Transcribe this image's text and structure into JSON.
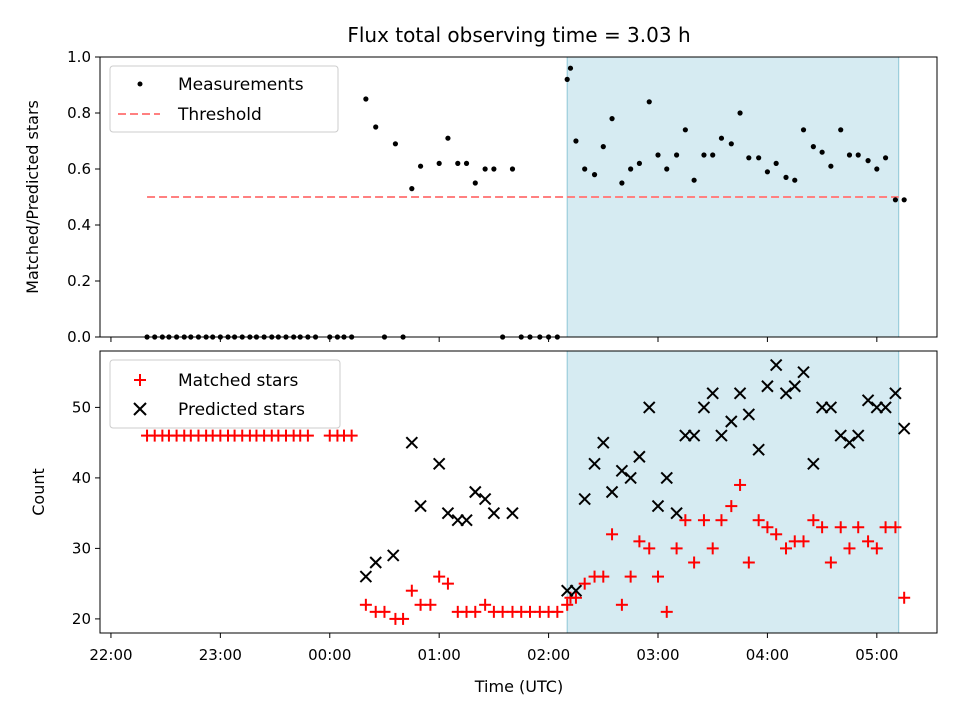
{
  "chart_data": {
    "title": "Flux total observing time = 3.03 h",
    "xlabel": "Time (UTC)",
    "x_tick_labels": [
      "22:00",
      "23:00",
      "00:00",
      "01:00",
      "02:00",
      "03:00",
      "04:00",
      "05:00"
    ],
    "x_tick_hours": [
      0,
      1,
      2,
      3,
      4,
      5,
      6,
      7
    ],
    "highlight_span_hours": [
      4.17,
      7.2
    ],
    "panels": [
      {
        "type": "scatter",
        "ylabel": "Matched/Predicted stars",
        "ylim": [
          0,
          1.0
        ],
        "y_ticks": [
          0.0,
          0.2,
          0.4,
          0.6,
          0.8,
          1.0
        ],
        "y_tick_labels": [
          "0.0",
          "0.2",
          "0.4",
          "0.6",
          "0.8",
          "1.0"
        ],
        "legend": {
          "position": "upper-left"
        },
        "threshold": {
          "name": "Threshold",
          "value": 0.5,
          "x_range": [
            0.33,
            7.2
          ],
          "color": "#ff8080"
        },
        "series": [
          {
            "name": "Measurements",
            "marker": "dot",
            "color": "#000000",
            "x": [
              0.33,
              0.4,
              0.47,
              0.53,
              0.6,
              0.67,
              0.73,
              0.8,
              0.87,
              0.93,
              1.0,
              1.07,
              1.13,
              1.2,
              1.27,
              1.33,
              1.4,
              1.47,
              1.53,
              1.6,
              1.67,
              1.73,
              1.8,
              1.87,
              2.0,
              2.07,
              2.13,
              2.2,
              2.33,
              2.42,
              2.5,
              2.6,
              2.67,
              2.75,
              2.83,
              3.0,
              3.08,
              3.17,
              3.25,
              3.33,
              3.42,
              3.5,
              3.58,
              3.67,
              3.75,
              3.83,
              3.92,
              4.0,
              4.08,
              4.17,
              4.2,
              4.25,
              4.33,
              4.42,
              4.5,
              4.58,
              4.67,
              4.75,
              4.83,
              4.92,
              5.0,
              5.08,
              5.17,
              5.25,
              5.33,
              5.42,
              5.5,
              5.58,
              5.67,
              5.75,
              5.83,
              5.92,
              6.0,
              6.08,
              6.17,
              6.25,
              6.33,
              6.42,
              6.5,
              6.58,
              6.67,
              6.75,
              6.83,
              6.92,
              7.0,
              7.08,
              7.17,
              7.25
            ],
            "y": [
              0,
              0,
              0,
              0,
              0,
              0,
              0,
              0,
              0,
              0,
              0,
              0,
              0,
              0,
              0,
              0,
              0,
              0,
              0,
              0,
              0,
              0,
              0,
              0,
              0,
              0,
              0,
              0,
              0.85,
              0.75,
              0,
              0.69,
              0,
              0.53,
              0.61,
              0.62,
              0.71,
              0.62,
              0.62,
              0.55,
              0.6,
              0.6,
              0,
              0.6,
              0,
              0,
              0,
              0,
              0,
              0.92,
              0.96,
              0.7,
              0.6,
              0.58,
              0.68,
              0.78,
              0.55,
              0.6,
              0.62,
              0.84,
              0.65,
              0.6,
              0.65,
              0.74,
              0.56,
              0.65,
              0.65,
              0.71,
              0.69,
              0.8,
              0.64,
              0.64,
              0.59,
              0.62,
              0.57,
              0.56,
              0.74,
              0.68,
              0.66,
              0.61,
              0.74,
              0.65,
              0.65,
              0.63,
              0.6,
              0.64,
              0.49,
              0.49
            ]
          }
        ]
      },
      {
        "type": "scatter",
        "ylabel": "Count",
        "ylim": [
          18,
          58
        ],
        "y_ticks": [
          20,
          30,
          40,
          50
        ],
        "y_tick_labels": [
          "20",
          "30",
          "40",
          "50"
        ],
        "legend": {
          "position": "upper-left"
        },
        "series": [
          {
            "name": "Matched stars",
            "marker": "plus",
            "color": "#ff0000",
            "x": [
              0.33,
              0.4,
              0.47,
              0.53,
              0.6,
              0.67,
              0.73,
              0.8,
              0.87,
              0.93,
              1.0,
              1.07,
              1.13,
              1.2,
              1.27,
              1.33,
              1.4,
              1.47,
              1.53,
              1.6,
              1.67,
              1.73,
              1.8,
              2.0,
              2.07,
              2.13,
              2.2,
              2.33,
              2.42,
              2.5,
              2.6,
              2.67,
              2.75,
              2.83,
              2.92,
              3.0,
              3.08,
              3.17,
              3.25,
              3.33,
              3.42,
              3.5,
              3.58,
              3.67,
              3.75,
              3.83,
              3.92,
              4.0,
              4.08,
              4.17,
              4.2,
              4.25,
              4.33,
              4.42,
              4.5,
              4.58,
              4.67,
              4.75,
              4.83,
              4.92,
              5.0,
              5.08,
              5.17,
              5.25,
              5.33,
              5.42,
              5.5,
              5.58,
              5.67,
              5.75,
              5.83,
              5.92,
              6.0,
              6.08,
              6.17,
              6.25,
              6.33,
              6.42,
              6.5,
              6.58,
              6.67,
              6.75,
              6.83,
              6.92,
              7.0,
              7.08,
              7.17,
              7.25
            ],
            "y": [
              46,
              46,
              46,
              46,
              46,
              46,
              46,
              46,
              46,
              46,
              46,
              46,
              46,
              46,
              46,
              46,
              46,
              46,
              46,
              46,
              46,
              46,
              46,
              46,
              46,
              46,
              46,
              22,
              21,
              21,
              20,
              20,
              24,
              22,
              22,
              26,
              25,
              21,
              21,
              21,
              22,
              21,
              21,
              21,
              21,
              21,
              21,
              21,
              21,
              22,
              23,
              23,
              25,
              26,
              26,
              32,
              22,
              26,
              31,
              30,
              26,
              21,
              30,
              34,
              28,
              34,
              30,
              34,
              36,
              39,
              28,
              34,
              33,
              32,
              30,
              31,
              31,
              34,
              33,
              28,
              33,
              30,
              33,
              31,
              30,
              33,
              33,
              23
            ]
          },
          {
            "name": "Predicted stars",
            "marker": "x",
            "color": "#000000",
            "x": [
              2.33,
              2.42,
              2.58,
              2.75,
              2.83,
              3.0,
              3.08,
              3.17,
              3.25,
              3.33,
              3.42,
              3.5,
              3.67,
              4.17,
              4.25,
              4.33,
              4.42,
              4.5,
              4.58,
              4.67,
              4.75,
              4.83,
              4.92,
              5.0,
              5.08,
              5.17,
              5.25,
              5.33,
              5.42,
              5.5,
              5.58,
              5.67,
              5.75,
              5.83,
              5.92,
              6.0,
              6.08,
              6.17,
              6.25,
              6.33,
              6.42,
              6.5,
              6.58,
              6.67,
              6.75,
              6.83,
              6.92,
              7.0,
              7.08,
              7.17,
              7.25
            ],
            "y": [
              26,
              28,
              29,
              45,
              36,
              42,
              35,
              34,
              34,
              38,
              37,
              35,
              35,
              24,
              24,
              37,
              42,
              45,
              38,
              41,
              40,
              43,
              50,
              36,
              40,
              35,
              46,
              46,
              50,
              52,
              46,
              48,
              52,
              49,
              44,
              53,
              56,
              52,
              53,
              55,
              42,
              50,
              50,
              46,
              45,
              46,
              51,
              50,
              50,
              52,
              47
            ]
          }
        ]
      }
    ]
  }
}
